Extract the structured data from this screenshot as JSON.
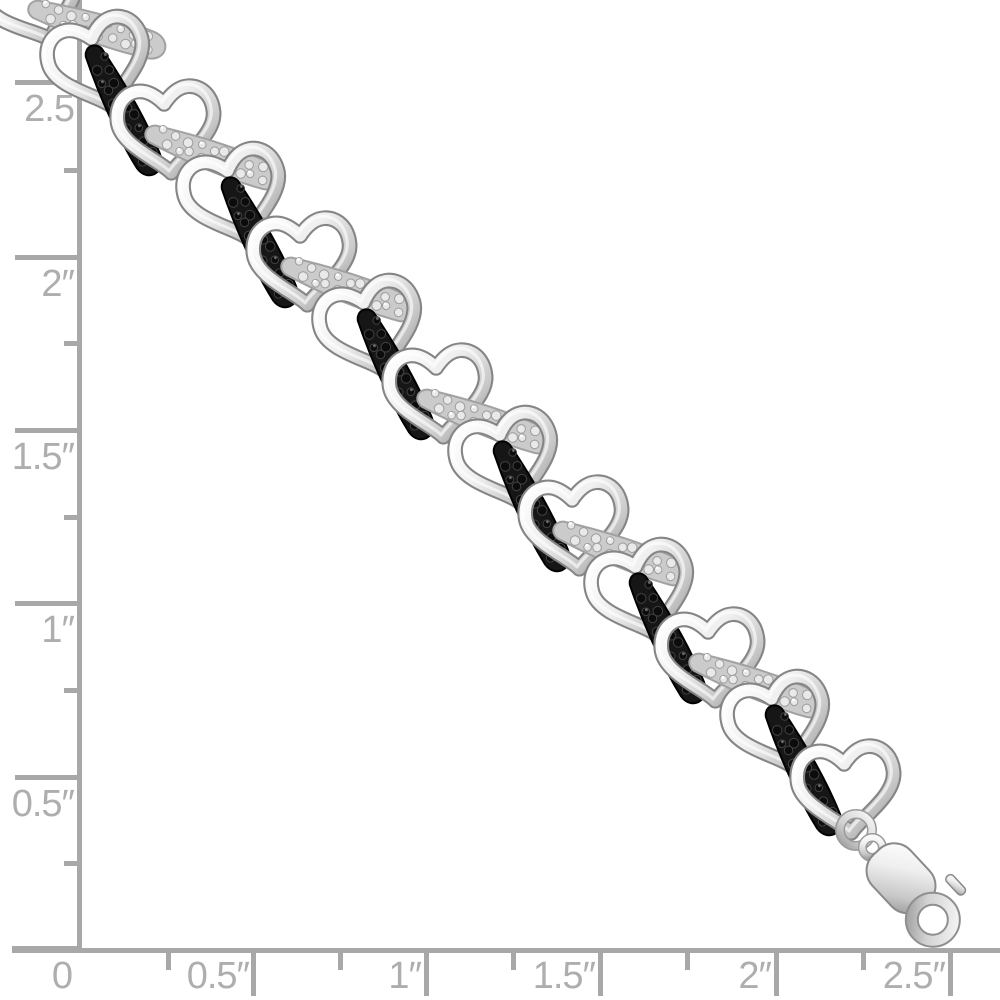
{
  "image": {
    "subject": "Silver open-heart link bracelet with alternating black and white diamond pave bars and lobster clasp, photographed over an inch ruler grid",
    "background_color": "#ffffff"
  },
  "rulers": {
    "unit": "inches",
    "line_color": "#a8a8a8",
    "label_color": "#aeaeae",
    "vertical": {
      "labels": [
        {
          "text": "2.5"
        },
        {
          "text": "2″"
        },
        {
          "text": "1.5″"
        },
        {
          "text": "1″"
        },
        {
          "text": "0.5″"
        }
      ]
    },
    "horizontal": {
      "labels": [
        {
          "text": "0"
        },
        {
          "text": "0.5″"
        },
        {
          "text": "1″"
        },
        {
          "text": "1.5″"
        },
        {
          "text": "2″"
        },
        {
          "text": "2.5″"
        }
      ]
    }
  },
  "bracelet": {
    "link_count": 12,
    "bar_pattern": [
      "white",
      "black",
      "white",
      "black",
      "white",
      "black",
      "white",
      "black",
      "white",
      "black",
      "white",
      "black"
    ],
    "metal_highlight": "#ffffff",
    "metal_mid": "#d9d9d9",
    "metal_shadow": "#8a8a8a",
    "metal_edge": "#858585",
    "black_pave": "#161616",
    "white_pave": "#cbcbcb",
    "clasp": "lobster"
  }
}
